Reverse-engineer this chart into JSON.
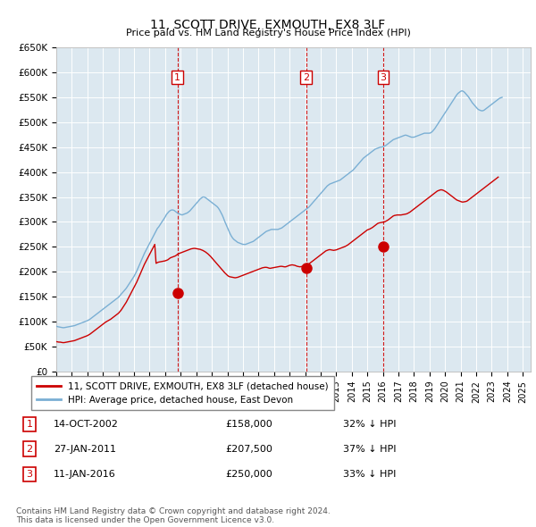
{
  "title": "11, SCOTT DRIVE, EXMOUTH, EX8 3LF",
  "subtitle": "Price paid vs. HM Land Registry's House Price Index (HPI)",
  "ylim": [
    0,
    650000
  ],
  "xlim_start": 1995.0,
  "xlim_end": 2025.5,
  "bg_color": "#dce8f0",
  "legend_label_red": "11, SCOTT DRIVE, EXMOUTH, EX8 3LF (detached house)",
  "legend_label_blue": "HPI: Average price, detached house, East Devon",
  "red_color": "#cc0000",
  "blue_color": "#7aafd4",
  "sale_points": [
    {
      "num": 1,
      "date": "14-OCT-2002",
      "price": 158000,
      "pct": "32% ↓ HPI",
      "year": 2002.79
    },
    {
      "num": 2,
      "date": "27-JAN-2011",
      "price": 207500,
      "pct": "37% ↓ HPI",
      "year": 2011.07
    },
    {
      "num": 3,
      "date": "11-JAN-2016",
      "price": 250000,
      "pct": "33% ↓ HPI",
      "year": 2016.03
    }
  ],
  "footnote": "Contains HM Land Registry data © Crown copyright and database right 2024.\nThis data is licensed under the Open Government Licence v3.0.",
  "hpi_data_monthly": {
    "start_year": 1995,
    "start_month": 1,
    "values": [
      91000,
      90000,
      89500,
      89000,
      88500,
      88000,
      88000,
      88500,
      89000,
      89500,
      90000,
      90500,
      91000,
      91500,
      92000,
      93000,
      94000,
      95000,
      96000,
      97000,
      98000,
      99000,
      100000,
      101000,
      102000,
      103500,
      105000,
      107000,
      109000,
      111000,
      113000,
      115000,
      117000,
      119000,
      121000,
      123000,
      125000,
      127000,
      129000,
      131000,
      133000,
      135000,
      137000,
      139000,
      141000,
      143000,
      145000,
      147000,
      149000,
      152000,
      155000,
      158000,
      161000,
      164000,
      167000,
      171000,
      175000,
      179000,
      183000,
      187000,
      191000,
      196000,
      201000,
      207000,
      213000,
      219000,
      225000,
      231000,
      237000,
      242000,
      247000,
      252000,
      257000,
      262000,
      267000,
      272000,
      277000,
      282000,
      287000,
      290000,
      294000,
      298000,
      302000,
      306000,
      310000,
      315000,
      318000,
      321000,
      323000,
      324000,
      324000,
      323000,
      321000,
      319000,
      317000,
      316000,
      315000,
      314000,
      315000,
      316000,
      317000,
      318000,
      320000,
      322000,
      325000,
      328000,
      331000,
      334000,
      337000,
      340000,
      343000,
      346000,
      348000,
      350000,
      350000,
      349000,
      347000,
      345000,
      343000,
      341000,
      339000,
      337000,
      335000,
      333000,
      331000,
      328000,
      324000,
      319000,
      314000,
      308000,
      301000,
      295000,
      289000,
      283000,
      277000,
      272000,
      268000,
      265000,
      263000,
      261000,
      259000,
      258000,
      257000,
      256000,
      255000,
      255000,
      255000,
      256000,
      257000,
      258000,
      259000,
      260000,
      261000,
      263000,
      265000,
      267000,
      269000,
      271000,
      273000,
      275000,
      277000,
      279000,
      281000,
      282000,
      283000,
      284000,
      285000,
      285000,
      285000,
      285000,
      285000,
      285000,
      286000,
      287000,
      288000,
      290000,
      292000,
      294000,
      296000,
      298000,
      300000,
      302000,
      304000,
      306000,
      308000,
      310000,
      312000,
      314000,
      316000,
      318000,
      320000,
      322000,
      324000,
      326000,
      328000,
      330000,
      333000,
      336000,
      339000,
      342000,
      345000,
      348000,
      351000,
      354000,
      357000,
      360000,
      363000,
      366000,
      369000,
      372000,
      374000,
      376000,
      377000,
      378000,
      379000,
      380000,
      381000,
      382000,
      383000,
      384000,
      386000,
      388000,
      390000,
      392000,
      394000,
      396000,
      398000,
      400000,
      402000,
      404000,
      407000,
      410000,
      413000,
      416000,
      419000,
      422000,
      425000,
      428000,
      430000,
      432000,
      434000,
      436000,
      438000,
      440000,
      442000,
      444000,
      446000,
      447000,
      448000,
      449000,
      450000,
      450000,
      451000,
      452000,
      453000,
      455000,
      457000,
      459000,
      461000,
      463000,
      465000,
      466000,
      467000,
      468000,
      469000,
      470000,
      471000,
      472000,
      473000,
      474000,
      474000,
      473000,
      472000,
      471000,
      470000,
      470000,
      470000,
      471000,
      472000,
      473000,
      474000,
      475000,
      476000,
      477000,
      478000,
      478000,
      478000,
      478000,
      478000,
      479000,
      481000,
      484000,
      487000,
      491000,
      495000,
      499000,
      503000,
      507000,
      511000,
      515000,
      519000,
      523000,
      527000,
      531000,
      535000,
      539000,
      543000,
      547000,
      551000,
      555000,
      558000,
      560000,
      562000,
      563000,
      562000,
      560000,
      557000,
      554000,
      551000,
      547000,
      543000,
      539000,
      536000,
      533000,
      530000,
      527000,
      525000,
      524000,
      523000,
      523000,
      524000,
      526000,
      528000,
      530000,
      532000,
      534000,
      536000,
      538000,
      540000,
      542000,
      544000,
      546000,
      548000,
      549000,
      550000
    ]
  },
  "red_data_monthly": {
    "start_year": 1995,
    "start_month": 1,
    "values": [
      60000,
      59500,
      59000,
      59000,
      58500,
      58000,
      58000,
      58500,
      59000,
      59500,
      60000,
      60500,
      61000,
      61500,
      62000,
      63000,
      64000,
      65000,
      66000,
      67000,
      68000,
      69000,
      70000,
      71000,
      72000,
      73500,
      75000,
      77000,
      79000,
      81000,
      83000,
      85000,
      87000,
      89000,
      91000,
      93000,
      95000,
      97000,
      99000,
      100500,
      102000,
      103500,
      105000,
      107000,
      109000,
      111000,
      113000,
      115000,
      117000,
      120000,
      123000,
      127000,
      131000,
      135000,
      139000,
      144000,
      149000,
      154000,
      159000,
      164000,
      169000,
      174000,
      179000,
      185000,
      191000,
      197000,
      203000,
      209000,
      215000,
      220000,
      225000,
      230000,
      235000,
      240000,
      245000,
      250000,
      255000,
      217000,
      218500,
      219500,
      220000,
      220500,
      221000,
      221500,
      222000,
      223000,
      224000,
      226000,
      228000,
      229000,
      230000,
      231000,
      232000,
      234000,
      236000,
      237000,
      238000,
      239000,
      240000,
      241000,
      242000,
      243000,
      244000,
      245000,
      246000,
      246500,
      247000,
      247000,
      246500,
      246000,
      245500,
      245000,
      244000,
      243000,
      241500,
      240000,
      238000,
      236000,
      233500,
      231000,
      228000,
      225000,
      222000,
      219000,
      216000,
      213000,
      210000,
      207000,
      204000,
      201000,
      198000,
      195500,
      193000,
      191000,
      190000,
      189500,
      189000,
      188500,
      188000,
      188500,
      189000,
      190000,
      191000,
      192000,
      193000,
      194000,
      195000,
      196000,
      197000,
      198000,
      199000,
      200000,
      201000,
      202000,
      203000,
      204000,
      205000,
      206000,
      207000,
      208000,
      208500,
      209000,
      209000,
      208500,
      207500,
      207000,
      207500,
      208000,
      208500,
      209000,
      209500,
      210000,
      210500,
      211000,
      211000,
      210500,
      210000,
      210000,
      211000,
      212000,
      213000,
      213500,
      214000,
      213500,
      213000,
      212000,
      211000,
      210500,
      210000,
      210500,
      211000,
      212000,
      213000,
      214000,
      215000,
      216000,
      218000,
      220000,
      222000,
      224000,
      226000,
      228000,
      230000,
      232000,
      234000,
      236000,
      238000,
      240000,
      242000,
      243000,
      244000,
      244500,
      244000,
      243500,
      243000,
      243500,
      244000,
      245000,
      246000,
      247000,
      248000,
      249000,
      250000,
      251000,
      252500,
      254000,
      256000,
      258000,
      260000,
      262000,
      264000,
      266000,
      268000,
      270000,
      272000,
      274000,
      276000,
      278000,
      280000,
      282000,
      284000,
      285000,
      286000,
      287500,
      289000,
      291000,
      293000,
      295000,
      297000,
      298000,
      298500,
      299000,
      299500,
      300000,
      301000,
      302500,
      304000,
      306000,
      308000,
      310000,
      312000,
      313000,
      313500,
      314000,
      314000,
      314000,
      314000,
      314500,
      315000,
      315500,
      316000,
      317000,
      318500,
      320000,
      322000,
      324000,
      326000,
      328000,
      330000,
      332000,
      334000,
      336000,
      338000,
      340000,
      342000,
      344000,
      346000,
      348000,
      350000,
      352000,
      354000,
      356000,
      358000,
      360000,
      362000,
      363000,
      364000,
      364500,
      364000,
      363000,
      361500,
      360000,
      358000,
      356000,
      354000,
      352000,
      350000,
      348000,
      346000,
      344000,
      343000,
      342000,
      341000,
      340000,
      340000,
      340500,
      341000,
      342000,
      344000,
      346000,
      348000,
      350000,
      352000,
      354000,
      356000,
      358000,
      360000,
      362000,
      364000,
      366000,
      368000,
      370000,
      372000,
      374000,
      376000,
      378000,
      380000,
      382000,
      384000,
      386000,
      388000,
      390000
    ]
  }
}
